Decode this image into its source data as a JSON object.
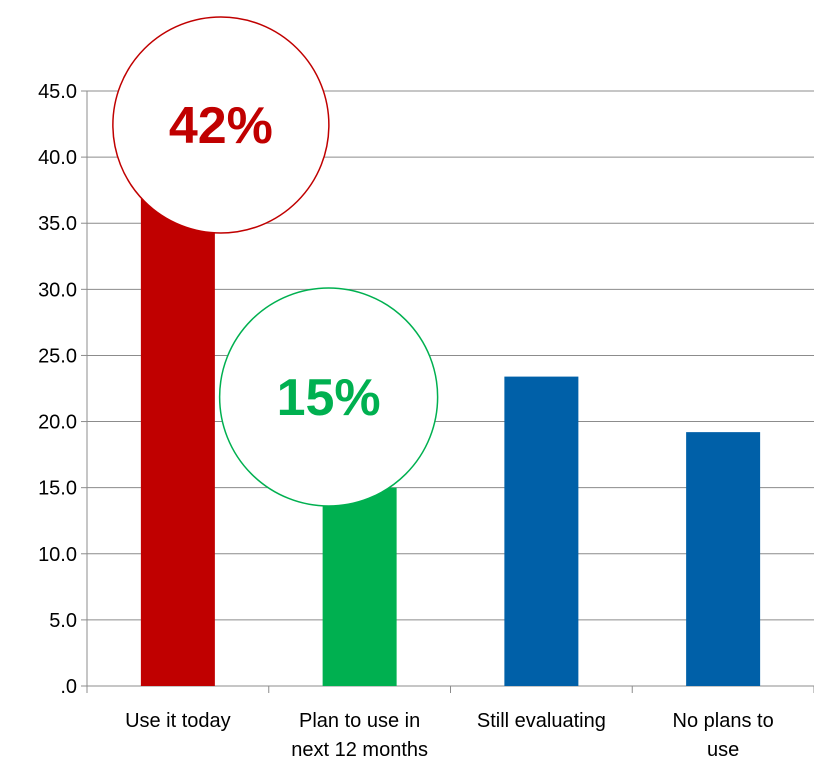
{
  "chart_data": {
    "type": "bar",
    "categories": [
      [
        "Use it today"
      ],
      [
        "Plan to use in",
        "next 12 months"
      ],
      [
        "Still evaluating"
      ],
      [
        "No plans to",
        "use"
      ]
    ],
    "values": [
      42.0,
      15.0,
      23.4,
      19.2
    ],
    "bar_colors": [
      "#c00000",
      "#00b050",
      "#0060a8",
      "#0060a8"
    ],
    "ylim": [
      0,
      45
    ],
    "ytick_step": 5,
    "ytick_labels": [
      ".0",
      "5.0",
      "10.0",
      "15.0",
      "20.0",
      "25.0",
      "30.0",
      "35.0",
      "40.0",
      "45.0"
    ],
    "grid": true,
    "title": "",
    "xlabel": "",
    "ylabel": "",
    "callouts": [
      {
        "category_index": 0,
        "text": "42%",
        "color": "#c00000"
      },
      {
        "category_index": 1,
        "text": "15%",
        "color": "#00b050"
      }
    ]
  }
}
